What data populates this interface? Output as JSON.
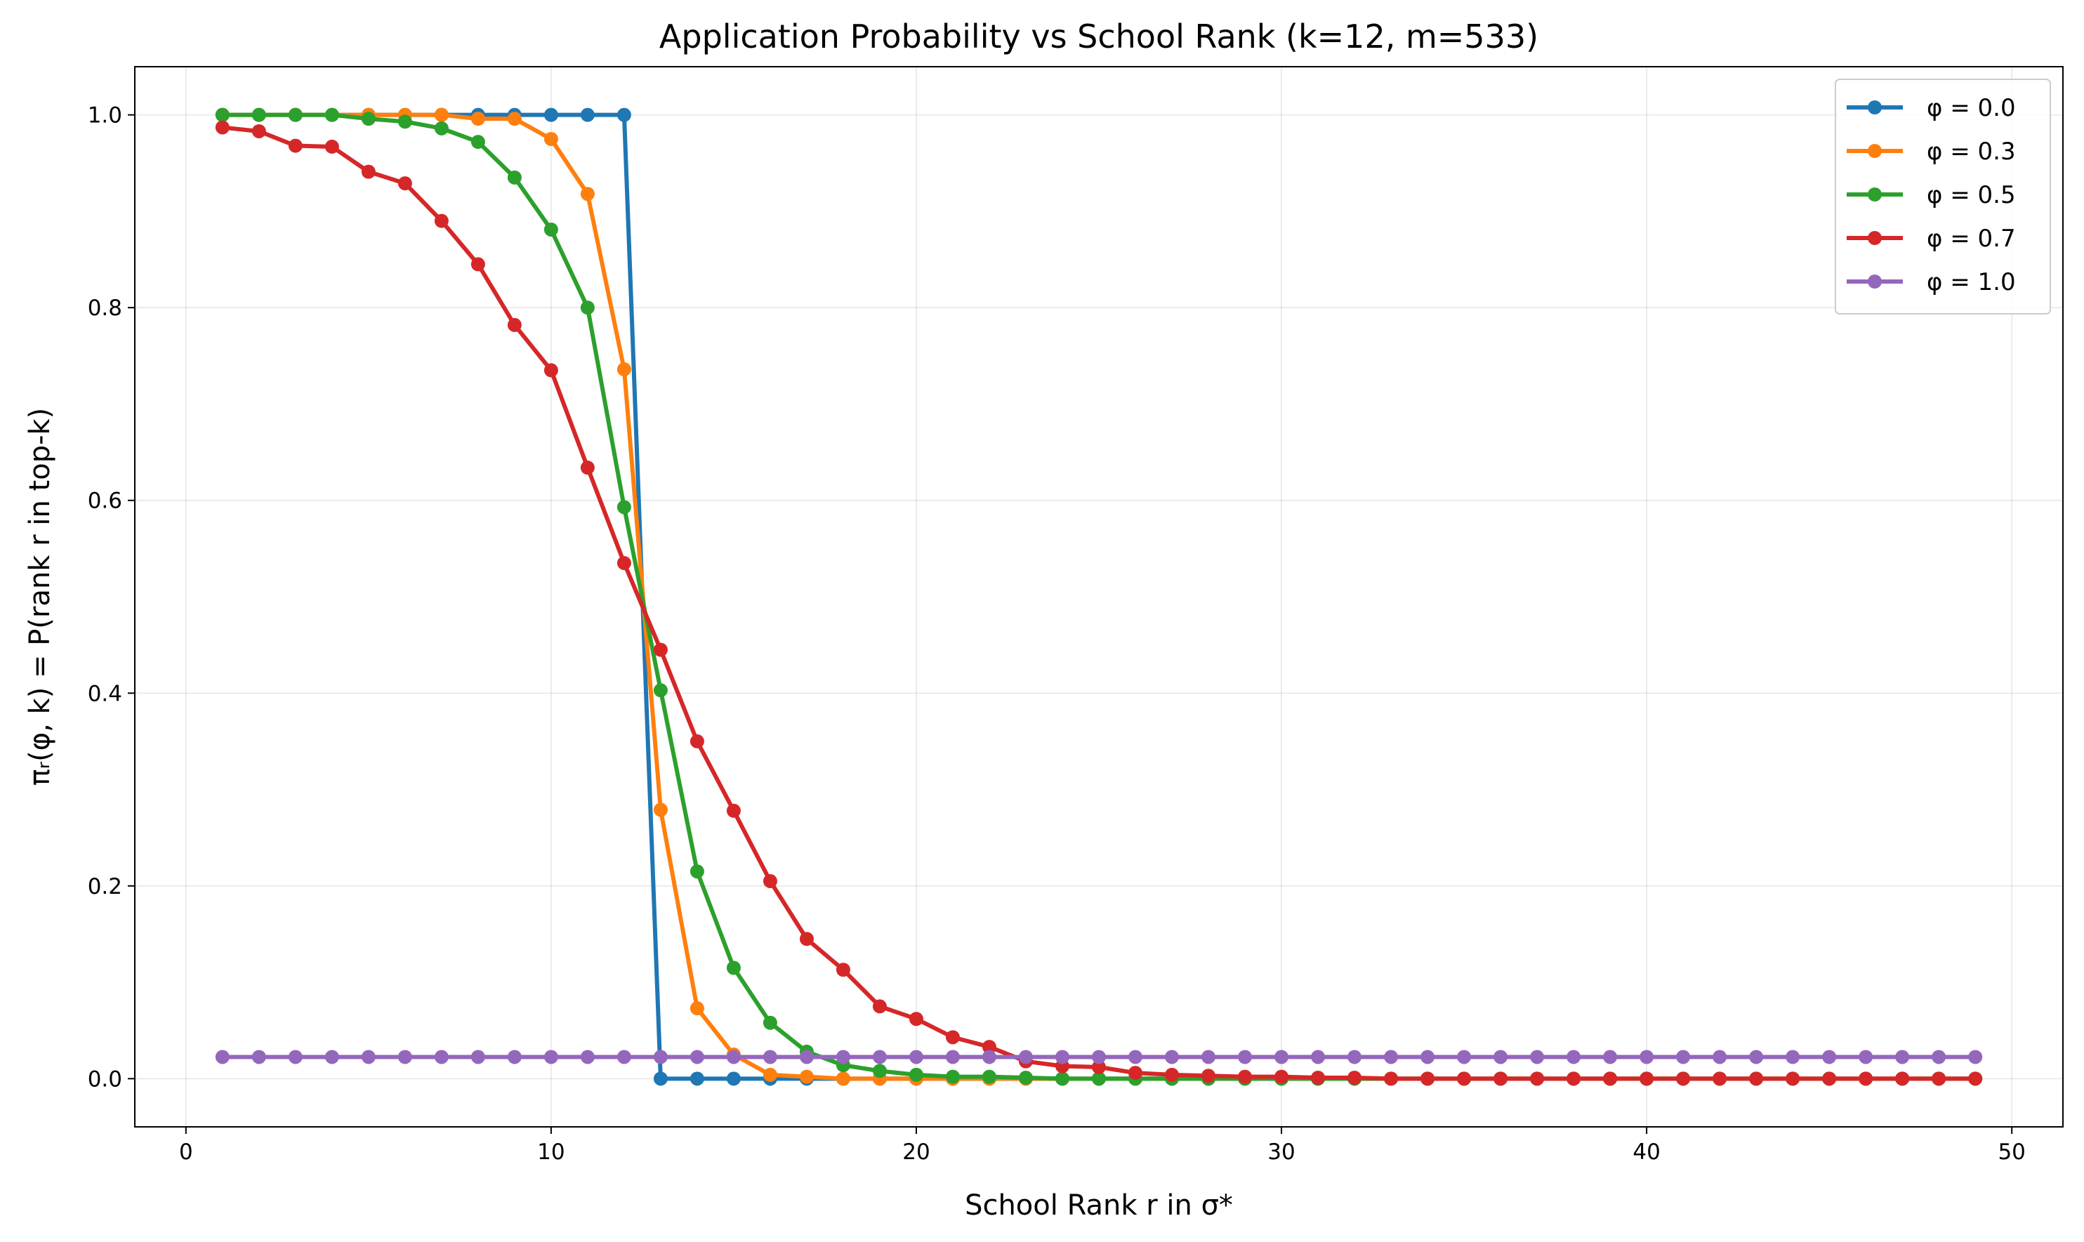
{
  "chart_data": {
    "type": "line",
    "title": "Application Probability vs School Rank (k=12, m=533)",
    "xlabel": "School Rank r in σ*",
    "ylabel": "πᵣ(φ, k) = P(rank r in top-k)",
    "xlim": [
      -1.4,
      51.4
    ],
    "ylim": [
      -0.05,
      1.05
    ],
    "xticks": [
      0,
      10,
      20,
      30,
      40,
      50
    ],
    "xtick_labels": [
      "0",
      "10",
      "20",
      "30",
      "40",
      "50"
    ],
    "yticks": [
      0.0,
      0.2,
      0.4,
      0.6,
      0.8,
      1.0
    ],
    "ytick_labels": [
      "0.0",
      "0.2",
      "0.4",
      "0.6",
      "0.8",
      "1.0"
    ],
    "grid": true,
    "legend_position": "top-right",
    "x": [
      1,
      2,
      3,
      4,
      5,
      6,
      7,
      8,
      9,
      10,
      11,
      12,
      13,
      14,
      15,
      16,
      17,
      18,
      19,
      20,
      21,
      22,
      23,
      24,
      25,
      26,
      27,
      28,
      29,
      30,
      31,
      32,
      33,
      34,
      35,
      36,
      37,
      38,
      39,
      40,
      41,
      42,
      43,
      44,
      45,
      46,
      47,
      48,
      49
    ],
    "series": [
      {
        "name": "φ = 0.0",
        "color": "#1f77b4",
        "values": [
          1,
          1,
          1,
          1,
          1,
          1,
          1,
          1,
          1,
          1,
          1,
          1,
          0,
          0,
          0,
          0,
          0,
          0,
          0,
          0,
          0,
          0,
          0,
          0,
          0,
          0,
          0,
          0,
          0,
          0,
          0,
          0,
          0,
          0,
          0,
          0,
          0,
          0,
          0,
          0,
          0,
          0,
          0,
          0,
          0,
          0,
          0,
          0,
          0
        ]
      },
      {
        "name": "φ = 0.3",
        "color": "#ff7f0e",
        "values": [
          1,
          1,
          1,
          1,
          1,
          1,
          1,
          0.996,
          0.996,
          0.975,
          0.918,
          0.736,
          0.279,
          0.073,
          0.025,
          0.004,
          0.002,
          0,
          0,
          0,
          0,
          0,
          0,
          0,
          0,
          0,
          0,
          0,
          0,
          0,
          0,
          0,
          0,
          0,
          0,
          0,
          0,
          0,
          0,
          0,
          0,
          0,
          0,
          0,
          0,
          0,
          0,
          0,
          0
        ]
      },
      {
        "name": "φ = 0.5",
        "color": "#2ca02c",
        "values": [
          1,
          1,
          1,
          1,
          0.996,
          0.993,
          0.986,
          0.972,
          0.935,
          0.881,
          0.8,
          0.593,
          0.403,
          0.215,
          0.115,
          0.058,
          0.028,
          0.014,
          0.008,
          0.004,
          0.002,
          0.002,
          0.001,
          0,
          0,
          0,
          0,
          0,
          0,
          0,
          0,
          0,
          0,
          0,
          0,
          0,
          0,
          0,
          0,
          0,
          0,
          0,
          0,
          0,
          0,
          0,
          0,
          0,
          0
        ]
      },
      {
        "name": "φ = 0.7",
        "color": "#d62728",
        "values": [
          0.987,
          0.983,
          0.968,
          0.967,
          0.941,
          0.929,
          0.89,
          0.845,
          0.782,
          0.735,
          0.634,
          0.535,
          0.445,
          0.35,
          0.278,
          0.205,
          0.145,
          0.113,
          0.075,
          0.062,
          0.043,
          0.033,
          0.018,
          0.013,
          0.012,
          0.006,
          0.004,
          0.003,
          0.002,
          0.002,
          0.001,
          0.001,
          0,
          0,
          0,
          0,
          0,
          0,
          0,
          0,
          0,
          0,
          0,
          0,
          0,
          0,
          0,
          0,
          0
        ]
      },
      {
        "name": "φ = 1.0",
        "color": "#9467bd",
        "values": [
          0.0225,
          0.0225,
          0.0225,
          0.0225,
          0.0225,
          0.0225,
          0.0225,
          0.0225,
          0.0225,
          0.0225,
          0.0225,
          0.0225,
          0.0225,
          0.0225,
          0.0225,
          0.0225,
          0.0225,
          0.0225,
          0.0225,
          0.0225,
          0.0225,
          0.0225,
          0.0225,
          0.0225,
          0.0225,
          0.0225,
          0.0225,
          0.0225,
          0.0225,
          0.0225,
          0.0225,
          0.0225,
          0.0225,
          0.0225,
          0.0225,
          0.0225,
          0.0225,
          0.0225,
          0.0225,
          0.0225,
          0.0225,
          0.0225,
          0.0225,
          0.0225,
          0.0225,
          0.0225,
          0.0225,
          0.0225,
          0.0225
        ]
      }
    ]
  }
}
